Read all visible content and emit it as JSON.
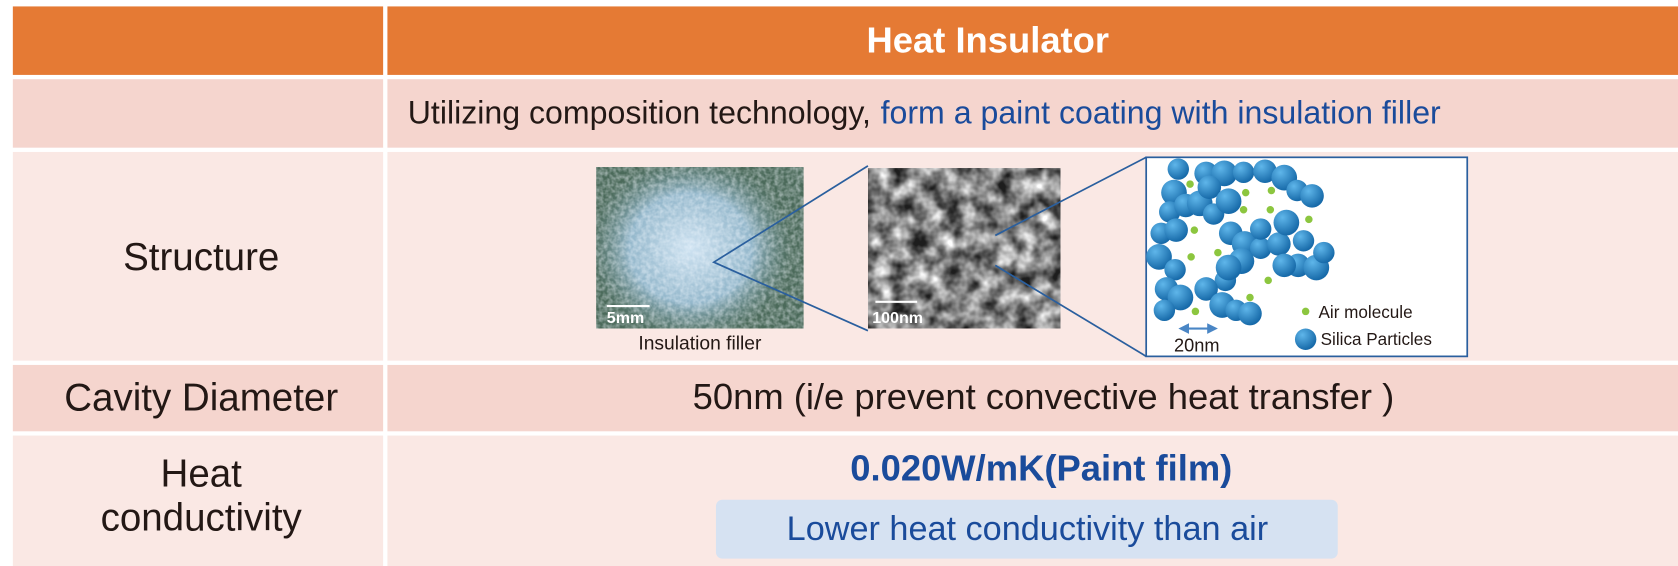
{
  "header": {
    "title": "Heat Insulator"
  },
  "intro": {
    "text": "Utilizing composition technology,",
    "highlight": "form a paint coating with insulation filler"
  },
  "structure": {
    "label": "Structure",
    "photo_scale_1": "5mm",
    "photo_scale_2": "100nm",
    "photo_caption": "Insulation filler",
    "diagram": {
      "scale": "20nm",
      "legend": [
        "Air molecule",
        "Silica Particles"
      ]
    }
  },
  "cavity": {
    "label": "Cavity Diameter",
    "text": "50nm (i/e prevent convective heat transfer )"
  },
  "conductivity": {
    "label": [
      "Heat",
      "conductivity"
    ],
    "value": "0.020W/mK(Paint film)",
    "note": "Lower heat conductivity than air"
  }
}
